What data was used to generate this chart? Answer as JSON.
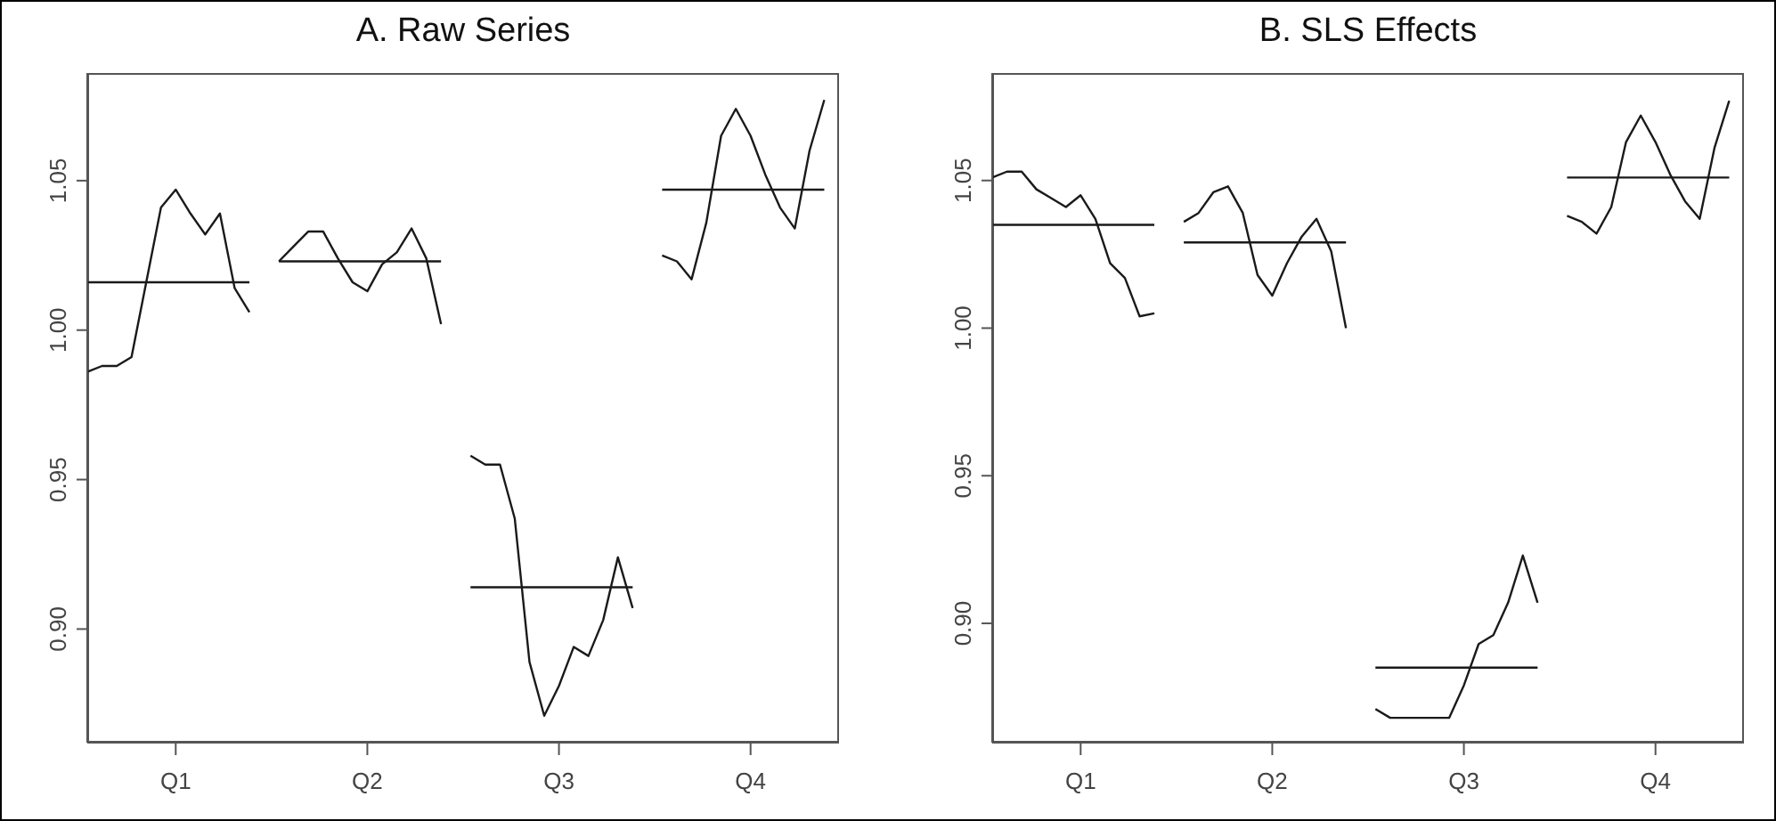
{
  "chart_data": [
    {
      "type": "line",
      "title": "A. Raw Series",
      "categories": [
        null,
        null,
        null,
        null,
        null,
        null,
        "Q1",
        null,
        null,
        null,
        null,
        null,
        null,
        null,
        null,
        null,
        null,
        null,
        null,
        "Q2",
        null,
        null,
        null,
        null,
        null,
        null,
        null,
        null,
        null,
        null,
        null,
        null,
        "Q3",
        null,
        null,
        null,
        null,
        null,
        null,
        null,
        null,
        null,
        null,
        null,
        null,
        "Q4",
        null,
        null,
        null,
        null,
        null,
        null
      ],
      "ylim": [
        0.862,
        1.086
      ],
      "yticks": [
        {
          "value": 0.9,
          "label": "0.90"
        },
        {
          "value": 0.95,
          "label": "0.95"
        },
        {
          "value": 1,
          "label": "1.00"
        },
        {
          "value": 1.05,
          "label": "1.05"
        }
      ],
      "grid": false,
      "marker": "none",
      "line_style": "solid",
      "series": [
        {
          "color": "#1a1a1a",
          "values": [
            0.986,
            0.988,
            0.988,
            0.991,
            1.016,
            1.041,
            1.047,
            1.039,
            1.032,
            1.039,
            1.014,
            1.006,
            null,
            1.023,
            1.028,
            1.033,
            1.033,
            1.024,
            1.016,
            1.013,
            1.022,
            1.026,
            1.034,
            1.024,
            1.002,
            null,
            0.958,
            0.955,
            0.955,
            0.937,
            0.889,
            0.871,
            0.881,
            0.894,
            0.891,
            0.903,
            0.924,
            0.907,
            null,
            1.025,
            1.023,
            1.017,
            1.036,
            1.065,
            1.074,
            1.065,
            1.052,
            1.041,
            1.034,
            1.06,
            1.077,
            null
          ]
        },
        {
          "color": "#1a1a1a",
          "values": [
            1.016,
            1.016,
            1.016,
            1.016,
            1.016,
            1.016,
            1.016,
            1.016,
            1.016,
            1.016,
            1.016,
            1.016,
            null,
            1.023,
            1.023,
            1.023,
            1.023,
            1.023,
            1.023,
            1.023,
            1.023,
            1.023,
            1.023,
            1.023,
            1.023,
            null,
            0.914,
            0.914,
            0.914,
            0.914,
            0.914,
            0.914,
            0.914,
            0.914,
            0.914,
            0.914,
            0.914,
            0.914,
            null,
            1.047,
            1.047,
            1.047,
            1.047,
            1.047,
            1.047,
            1.047,
            1.047,
            1.047,
            1.047,
            1.047,
            1.047,
            null
          ]
        }
      ]
    },
    {
      "type": "line",
      "title": "B. SLS Effects",
      "categories": [
        null,
        null,
        null,
        null,
        null,
        null,
        "Q1",
        null,
        null,
        null,
        null,
        null,
        null,
        null,
        null,
        null,
        null,
        null,
        null,
        "Q2",
        null,
        null,
        null,
        null,
        null,
        null,
        null,
        null,
        null,
        null,
        null,
        null,
        "Q3",
        null,
        null,
        null,
        null,
        null,
        null,
        null,
        null,
        null,
        null,
        null,
        null,
        "Q4",
        null,
        null,
        null,
        null,
        null,
        null
      ],
      "ylim": [
        0.8596,
        1.0864
      ],
      "yticks": [
        {
          "value": 0.9,
          "label": "0.90"
        },
        {
          "value": 0.95,
          "label": "0.95"
        },
        {
          "value": 1,
          "label": "1.00"
        },
        {
          "value": 1.05,
          "label": "1.05"
        }
      ],
      "grid": false,
      "marker": "none",
      "line_style": "solid",
      "series": [
        {
          "color": "#1a1a1a",
          "values": [
            1.051,
            1.053,
            1.053,
            1.047,
            1.044,
            1.041,
            1.045,
            1.037,
            1.022,
            1.017,
            1.004,
            1.005,
            null,
            1.036,
            1.039,
            1.046,
            1.048,
            1.039,
            1.018,
            1.011,
            1.022,
            1.031,
            1.037,
            1.026,
            1.0,
            null,
            0.871,
            0.868,
            0.868,
            0.868,
            0.868,
            0.868,
            0.879,
            0.893,
            0.896,
            0.907,
            0.923,
            0.907,
            null,
            1.038,
            1.036,
            1.032,
            1.041,
            1.063,
            1.072,
            1.063,
            1.052,
            1.043,
            1.037,
            1.061,
            1.077,
            null
          ]
        },
        {
          "color": "#1a1a1a",
          "values": [
            1.035,
            1.035,
            1.035,
            1.035,
            1.035,
            1.035,
            1.035,
            1.035,
            1.035,
            1.035,
            1.035,
            1.035,
            null,
            1.029,
            1.029,
            1.029,
            1.029,
            1.029,
            1.029,
            1.029,
            1.029,
            1.029,
            1.029,
            1.029,
            1.029,
            null,
            0.885,
            0.885,
            0.885,
            0.885,
            0.885,
            0.885,
            0.885,
            0.885,
            0.885,
            0.885,
            0.885,
            0.885,
            null,
            1.051,
            1.051,
            1.051,
            1.051,
            1.051,
            1.051,
            1.051,
            1.051,
            1.051,
            1.051,
            1.051,
            1.051,
            null
          ]
        }
      ]
    }
  ]
}
